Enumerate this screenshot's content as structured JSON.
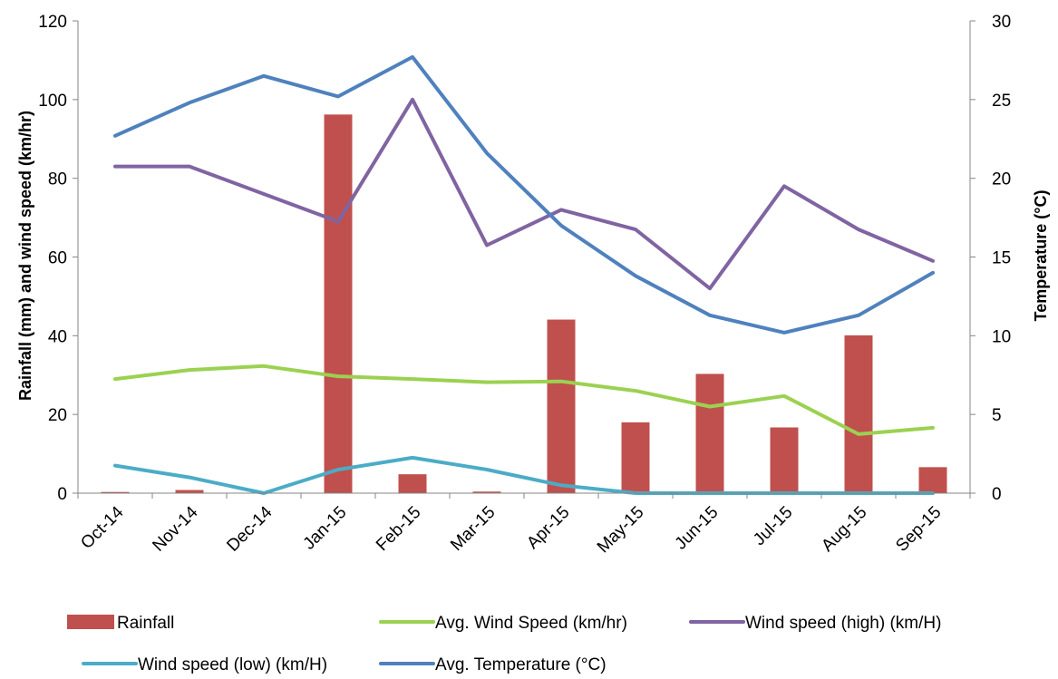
{
  "chart_data": {
    "type": "bar",
    "categories": [
      "Oct-14",
      "Nov-14",
      "Dec-14",
      "Jan-15",
      "Feb-15",
      "Mar-15",
      "Apr-15",
      "May-15",
      "Jun-15",
      "Jul-15",
      "Aug-15",
      "Sep-15"
    ],
    "y_left": {
      "label": "Rainfall (mm)  and wind speed (km/hr)",
      "range": [
        0,
        120
      ],
      "ticks": [
        "0",
        "20",
        "40",
        "60",
        "80",
        "100",
        "120"
      ]
    },
    "y_right": {
      "label": "Temperature  (°C)",
      "range": [
        0,
        30
      ],
      "ticks": [
        "0",
        "5",
        "10",
        "15",
        "20",
        "25",
        "30"
      ]
    },
    "grid": false,
    "legend_position": "bottom",
    "series": [
      {
        "name": "Rainfall",
        "type": "bar",
        "axis": "left",
        "color": "#c0504d",
        "values": [
          0.3,
          0.8,
          0,
          96.2,
          4.8,
          0.4,
          44.1,
          18,
          30.3,
          16.7,
          40.1,
          6.6
        ]
      },
      {
        "name": "Avg. Wind Speed (km/hr)",
        "type": "line",
        "axis": "left",
        "color": "#9bd151",
        "values": [
          29,
          31.3,
          32.3,
          29.7,
          29,
          28.2,
          28.4,
          26,
          22,
          24.7,
          15,
          16.6
        ]
      },
      {
        "name": "Wind speed (high) (km/H)",
        "type": "line",
        "axis": "left",
        "color": "#8064a2",
        "values": [
          83,
          83,
          76,
          69,
          100,
          63,
          72,
          67,
          52,
          78,
          67,
          59
        ]
      },
      {
        "name": "Wind speed (low) (km/H)",
        "type": "line",
        "axis": "left",
        "color": "#4bacc6",
        "values": [
          7,
          4,
          0,
          6,
          9,
          6,
          2,
          0,
          0,
          0,
          0,
          0
        ]
      },
      {
        "name": "Avg. Temperature (°C)",
        "type": "line",
        "axis": "right",
        "color": "#4f81bd",
        "values": [
          22.7,
          24.8,
          26.5,
          25.2,
          27.7,
          21.6,
          17,
          13.8,
          11.3,
          10.2,
          11.3,
          14
        ]
      }
    ]
  }
}
